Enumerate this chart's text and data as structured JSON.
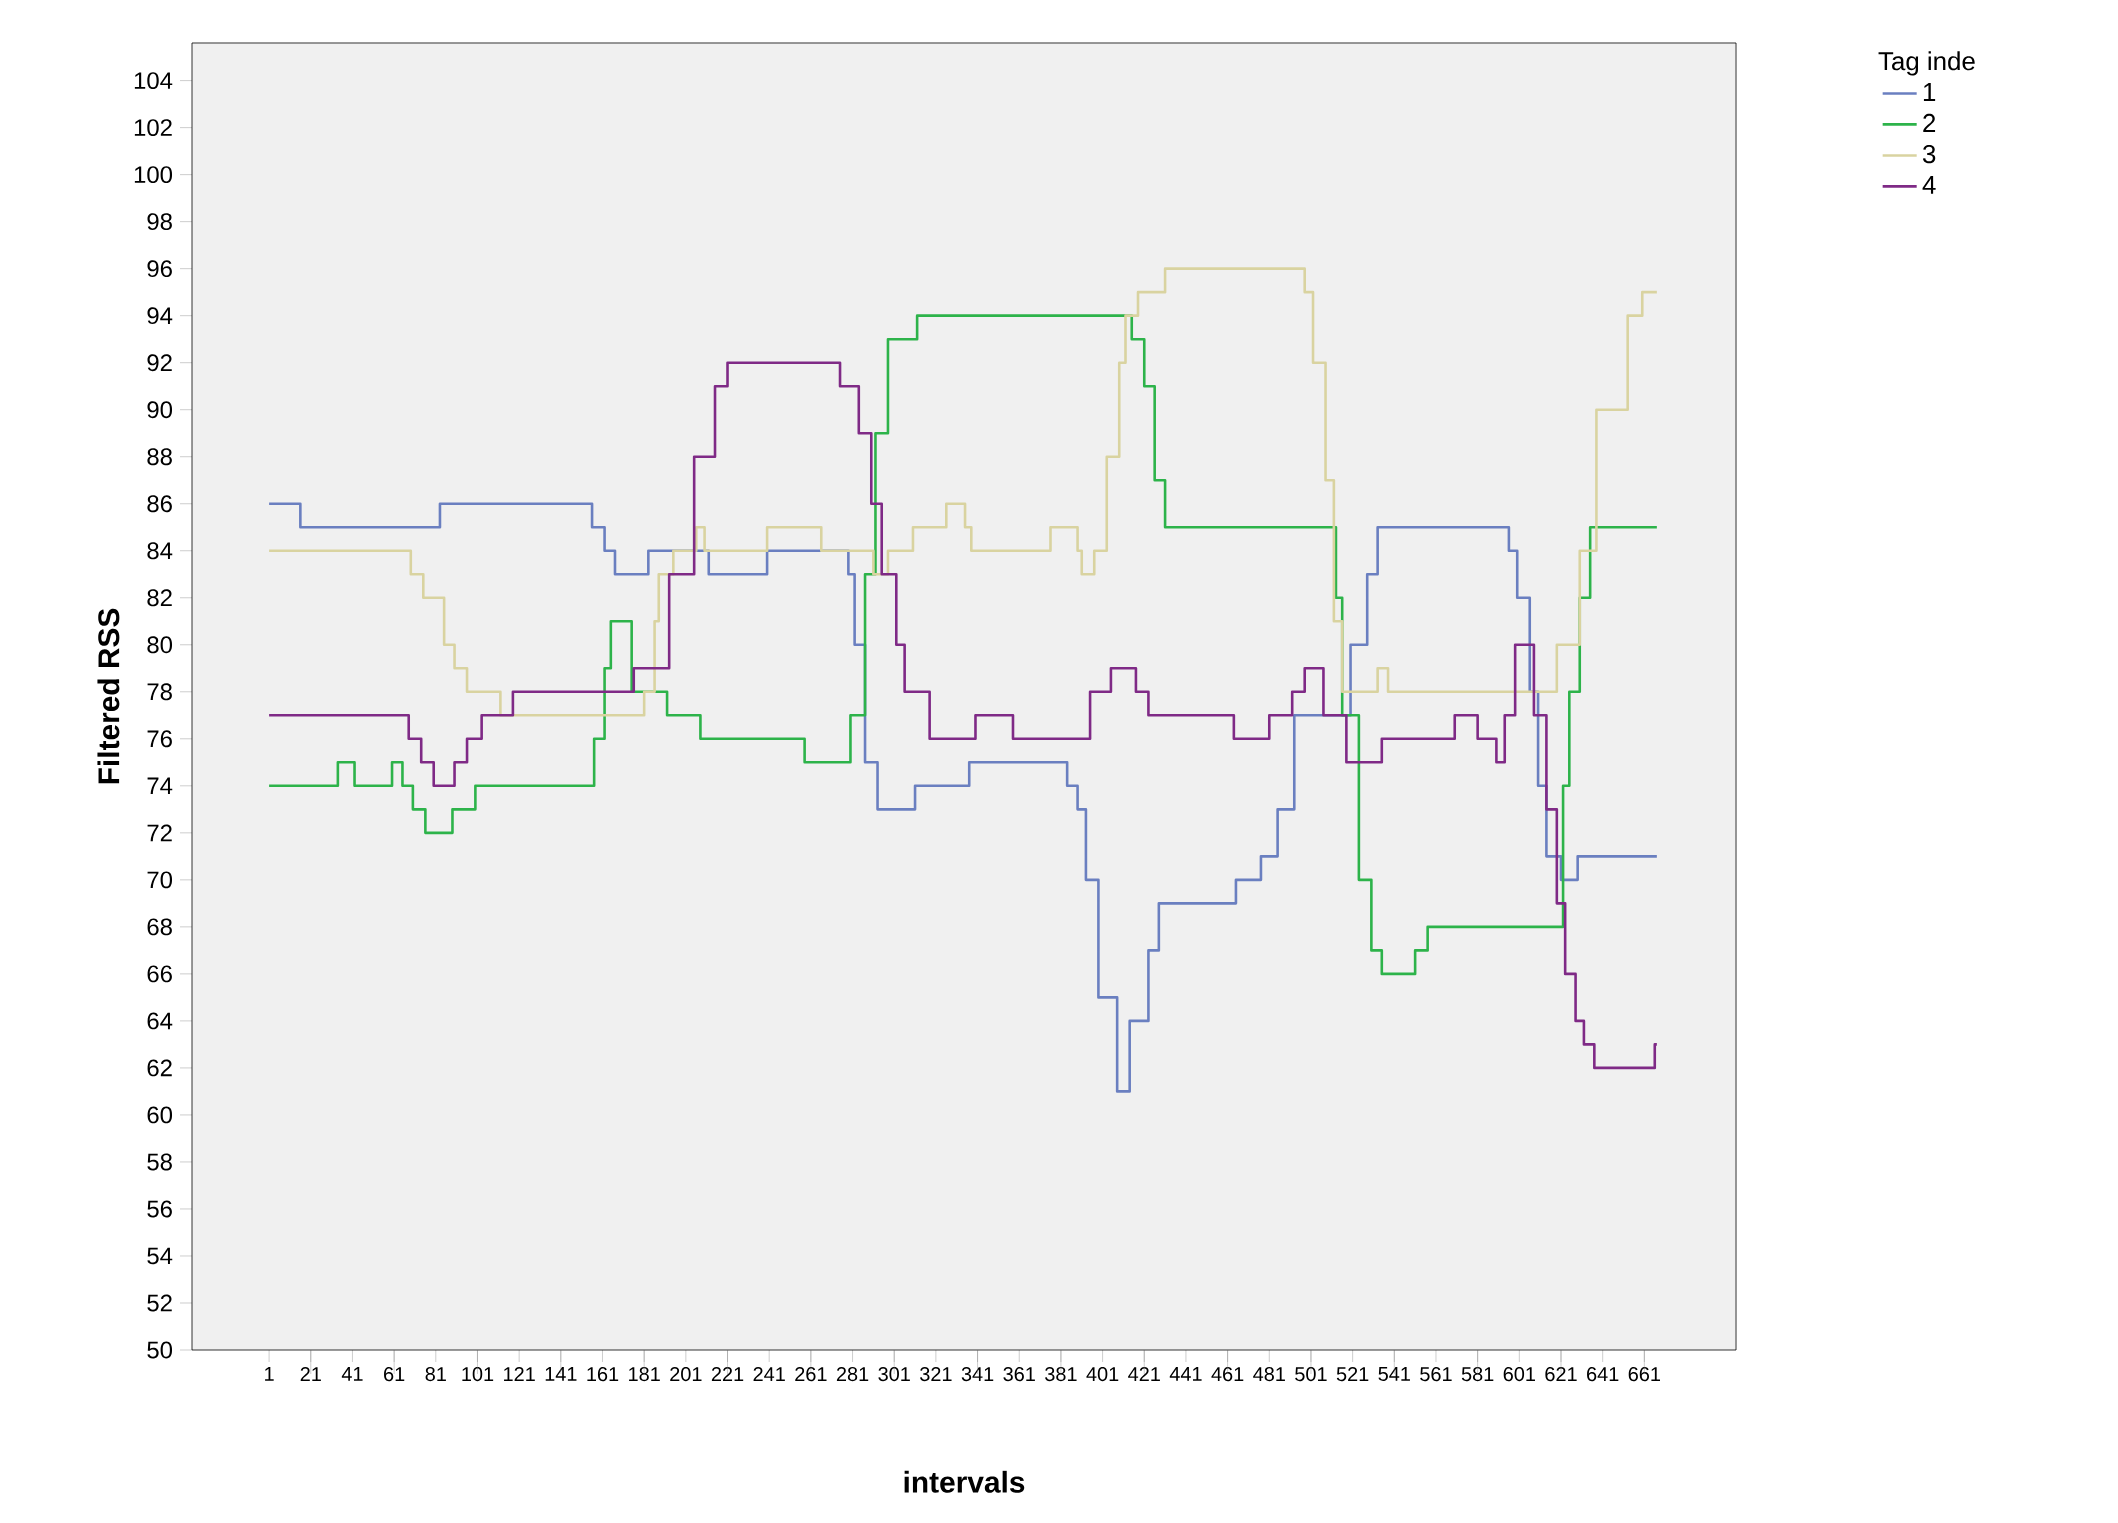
{
  "chart_data": {
    "type": "step",
    "xlabel": "intervals",
    "ylabel": "Filtered RSS",
    "legend_title": "Tag inde",
    "legend": "top right",
    "grid": false,
    "xlim": [
      -36,
      705
    ],
    "ylim": [
      50,
      105.6
    ],
    "xticks": [
      1,
      21,
      41,
      61,
      81,
      101,
      121,
      141,
      161,
      181,
      201,
      221,
      241,
      261,
      281,
      301,
      321,
      341,
      361,
      381,
      401,
      421,
      441,
      461,
      481,
      501,
      521,
      541,
      561,
      581,
      601,
      621,
      641,
      661
    ],
    "yticks": [
      50,
      52,
      54,
      56,
      58,
      60,
      62,
      64,
      66,
      68,
      70,
      72,
      74,
      76,
      78,
      80,
      82,
      84,
      86,
      88,
      90,
      92,
      94,
      96,
      98,
      100,
      102,
      104
    ],
    "series": [
      {
        "name": "1",
        "color": "#6a7fc0",
        "x": [
          1,
          16,
          83,
          156,
          162,
          167,
          183,
          212,
          240,
          279,
          282,
          287,
          293,
          311,
          337,
          384,
          389,
          393,
          399,
          408,
          414,
          423,
          428,
          465,
          477,
          485,
          493,
          520,
          528,
          533,
          596,
          600,
          606,
          610,
          614,
          621,
          629,
          667
        ],
        "values": [
          86,
          85,
          86,
          85,
          84,
          83,
          84,
          83,
          84,
          83,
          80,
          75,
          73,
          74,
          75,
          74,
          73,
          70,
          65,
          61,
          64,
          67,
          69,
          70,
          71,
          73,
          77,
          80,
          83,
          85,
          84,
          82,
          78,
          74,
          71,
          70,
          71,
          71
        ]
      },
      {
        "name": "2",
        "color": "#2db34a",
        "x": [
          1,
          34,
          42,
          60,
          65,
          70,
          76,
          89,
          100,
          157,
          162,
          165,
          175,
          192,
          208,
          258,
          280,
          287,
          292,
          298,
          312,
          415,
          421,
          426,
          431,
          513,
          516,
          524,
          530,
          535,
          551,
          557,
          622,
          625,
          630,
          635,
          667
        ],
        "values": [
          74,
          75,
          74,
          75,
          74,
          73,
          72,
          73,
          74,
          76,
          79,
          81,
          78,
          77,
          76,
          75,
          77,
          83,
          89,
          93,
          94,
          93,
          91,
          87,
          85,
          82,
          77,
          70,
          67,
          66,
          67,
          68,
          74,
          78,
          82,
          85,
          85
        ]
      },
      {
        "name": "3",
        "color": "#d9d3a0",
        "x": [
          1,
          69,
          75,
          85,
          90,
          96,
          112,
          181,
          186,
          188,
          195,
          206,
          210,
          240,
          266,
          291,
          298,
          310,
          326,
          335,
          338,
          376,
          389,
          391,
          397,
          403,
          409,
          412,
          418,
          431,
          498,
          502,
          508,
          512,
          516,
          533,
          538,
          619,
          630,
          638,
          653,
          660,
          667
        ],
        "values": [
          84,
          83,
          82,
          80,
          79,
          78,
          77,
          78,
          81,
          83,
          84,
          85,
          84,
          85,
          84,
          83,
          84,
          85,
          86,
          85,
          84,
          85,
          84,
          83,
          84,
          88,
          92,
          94,
          95,
          96,
          95,
          92,
          87,
          81,
          78,
          79,
          78,
          80,
          84,
          90,
          94,
          95,
          95
        ]
      },
      {
        "name": "4",
        "color": "#7f2a86",
        "x": [
          1,
          68,
          74,
          80,
          90,
          96,
          103,
          118,
          176,
          193,
          205,
          215,
          221,
          275,
          284,
          290,
          295,
          302,
          306,
          318,
          340,
          358,
          395,
          405,
          417,
          423,
          464,
          481,
          492,
          498,
          507,
          518,
          535,
          570,
          581,
          590,
          594,
          599,
          608,
          614,
          619,
          623,
          628,
          632,
          637,
          666,
          667
        ],
        "values": [
          77,
          76,
          75,
          74,
          75,
          76,
          77,
          78,
          79,
          83,
          88,
          91,
          92,
          91,
          89,
          86,
          83,
          80,
          78,
          76,
          77,
          76,
          78,
          79,
          78,
          77,
          76,
          77,
          78,
          79,
          77,
          75,
          76,
          77,
          76,
          75,
          77,
          80,
          77,
          73,
          69,
          66,
          64,
          63,
          62,
          63,
          63
        ]
      }
    ]
  }
}
